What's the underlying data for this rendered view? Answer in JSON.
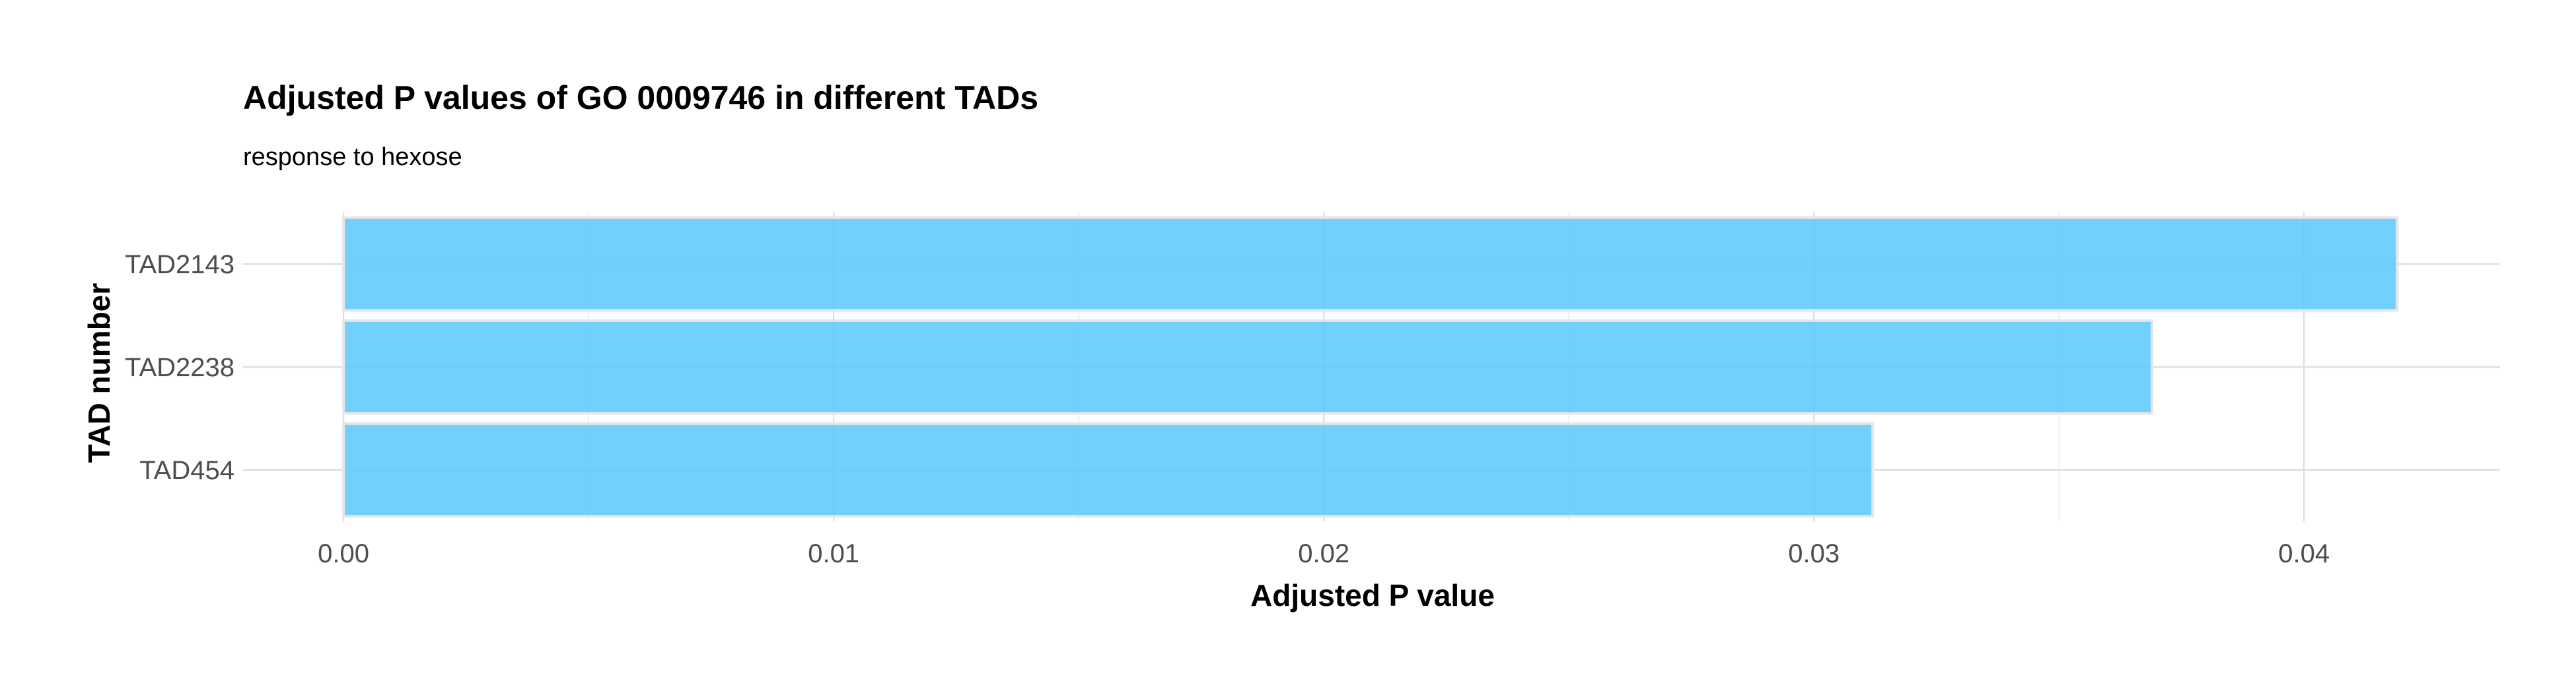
{
  "chart_data": {
    "type": "bar",
    "orientation": "horizontal",
    "title": "Adjusted P values of GO 0009746 in different TADs",
    "subtitle": "response to hexose",
    "xlabel": "Adjusted P value",
    "ylabel": "TAD number",
    "categories": [
      "TAD2143",
      "TAD2238",
      "TAD454"
    ],
    "values": [
      0.0419,
      0.0369,
      0.0312
    ],
    "xlim": [
      -0.00205,
      0.044
    ],
    "x_ticks": [
      0.0,
      0.01,
      0.02,
      0.03,
      0.04
    ],
    "x_tick_labels": [
      "0.00",
      "0.01",
      "0.02",
      "0.03",
      "0.04"
    ],
    "bar_color": "#5bc8fb",
    "bar_opacity": 0.85,
    "grid": true,
    "legend": "none"
  }
}
